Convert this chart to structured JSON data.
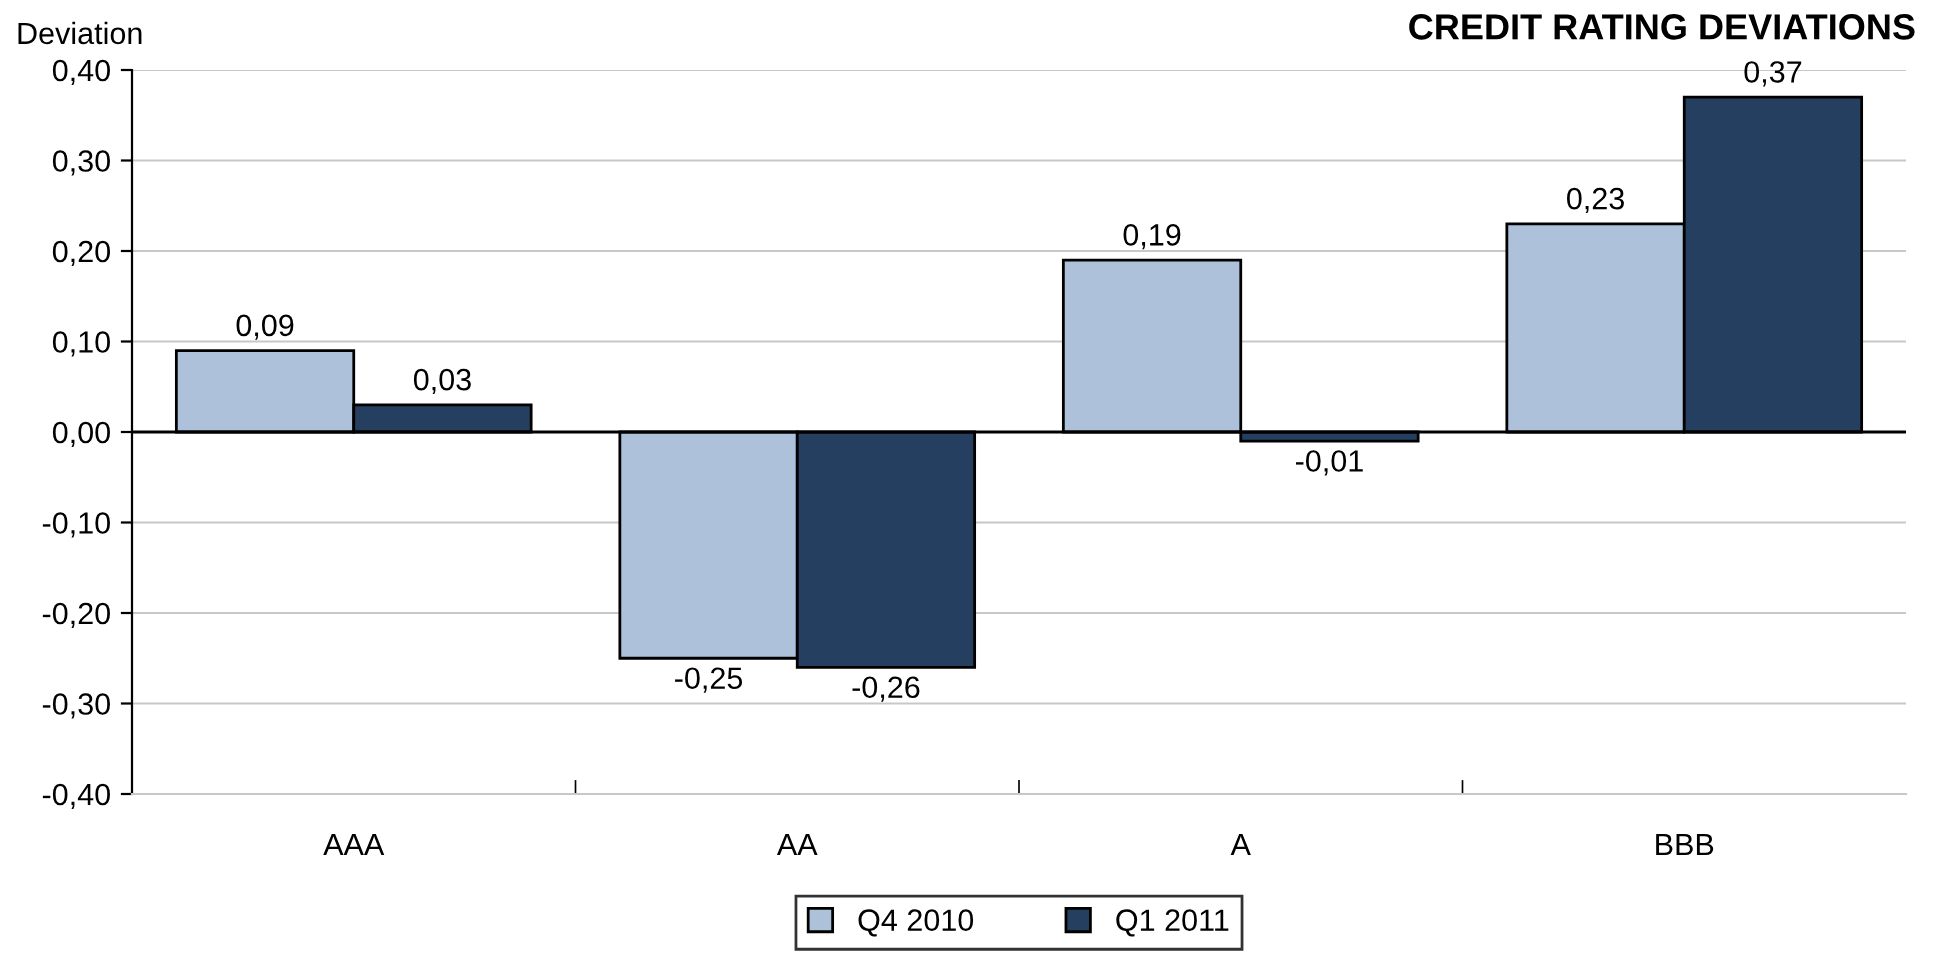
{
  "chart_data": {
    "type": "bar",
    "title": "CREDIT RATING DEVIATIONS",
    "ylabel": "Deviation",
    "categories": [
      "AAA",
      "AA",
      "A",
      "BBB"
    ],
    "series": [
      {
        "name": "Q4 2010",
        "color": "#adc2da",
        "values": [
          0.09,
          -0.25,
          0.19,
          0.23
        ],
        "value_labels": [
          "0,09",
          "-0,25",
          "0,19",
          "0,23"
        ]
      },
      {
        "name": "Q1 2011",
        "color": "#243f60",
        "values": [
          0.03,
          -0.26,
          -0.01,
          0.37
        ],
        "value_labels": [
          "0,03",
          "-0,26",
          "-0,01",
          "0,37"
        ]
      }
    ],
    "ylim": [
      -0.4,
      0.4
    ],
    "yticks": [
      {
        "value": -0.4,
        "label": "-0,40"
      },
      {
        "value": -0.3,
        "label": "-0,30"
      },
      {
        "value": -0.2,
        "label": "-0,20"
      },
      {
        "value": -0.1,
        "label": "-0,10"
      },
      {
        "value": 0,
        "label": "0,00"
      },
      {
        "value": 0.1,
        "label": "0,10"
      },
      {
        "value": 0.2,
        "label": "0,20"
      },
      {
        "value": 0.3,
        "label": "0,30"
      },
      {
        "value": 0.4,
        "label": "0,40"
      }
    ],
    "grid": "y",
    "legend": "bottom"
  }
}
